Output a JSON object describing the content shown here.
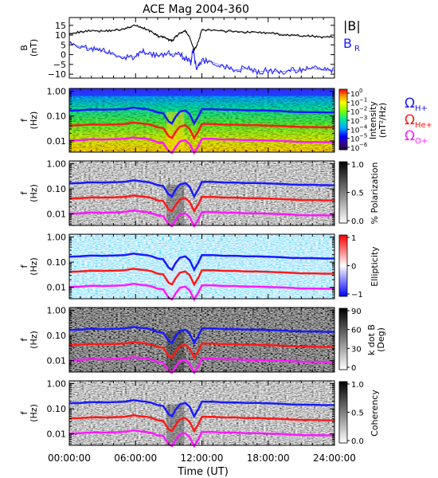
{
  "title": "ACE Mag 2004-360",
  "x_axis": {
    "label": "Time (UT)",
    "range": [
      0,
      24
    ],
    "ticks": [
      {
        "value": 0,
        "label": "00:00:00"
      },
      {
        "value": 6,
        "label": "06:00:00"
      },
      {
        "value": 12,
        "label": "12:00:00"
      },
      {
        "value": 18,
        "label": "18:00:00"
      },
      {
        "value": 24,
        "label": "24:00:00"
      }
    ]
  },
  "colors": {
    "btotal": "#000000",
    "br": "#1a1aff",
    "h_plus": "#1a1aff",
    "he_plus": "#ff1a1a",
    "o_plus": "#ff1aff"
  },
  "ion_labels": {
    "h": "H+",
    "he": "He+",
    "o": "O+",
    "omega": "Ω"
  },
  "chart_data": [
    {
      "type": "line",
      "panel": "field",
      "ylabel": "B",
      "yunits": "(nT)",
      "ylim": [
        -12,
        19
      ],
      "yticks": [
        -10,
        -5,
        0,
        5,
        10,
        15
      ],
      "legend": [
        "|B|",
        "BR"
      ],
      "legend_main": {
        "btotal": "|B|",
        "br": "B"
      },
      "legend_sub": {
        "br": "R"
      },
      "series": [
        {
          "name": "|B|",
          "color": "#000000",
          "x": [
            0,
            1,
            2,
            3,
            4,
            5,
            5.8,
            6.5,
            7,
            7.5,
            8,
            8.5,
            9,
            9.3,
            9.6,
            10,
            10.5,
            10.9,
            11.3,
            11.7,
            12,
            13,
            14,
            15,
            16,
            17,
            18,
            19,
            20,
            21,
            22,
            23,
            24
          ],
          "values": [
            11,
            11.5,
            12.5,
            12,
            12.5,
            13,
            15,
            14,
            13,
            11.5,
            9.5,
            9,
            7.5,
            7,
            9,
            11,
            12,
            9,
            2,
            7,
            12.5,
            12.5,
            12,
            12,
            11.5,
            11.5,
            11,
            10.5,
            10,
            9.5,
            9.5,
            9,
            9
          ]
        },
        {
          "name": "BR",
          "color": "#1a1aff",
          "x": [
            0,
            1,
            2,
            3,
            4,
            5,
            6,
            6.5,
            7,
            8,
            9,
            10,
            10.5,
            11,
            11.2,
            11.5,
            12,
            13,
            14,
            15,
            16,
            17,
            18,
            19,
            20,
            21,
            22,
            23,
            24
          ],
          "values": [
            6,
            4,
            3,
            2,
            0,
            -1.5,
            -1,
            2,
            0.5,
            -0.5,
            0.5,
            0,
            -2,
            -4,
            3,
            -7,
            -3,
            -4,
            -6,
            -8,
            -7,
            -9,
            -8,
            -9,
            -8,
            -8,
            -7,
            -8,
            -8
          ]
        }
      ]
    },
    {
      "type": "heatmap",
      "panel": "intensity",
      "ylabel": "f",
      "yunits": "(Hz)",
      "ylim": [
        0.0035,
        1.3
      ],
      "yticks": [
        0.01,
        0.1,
        1.0
      ],
      "ytick_labels": [
        "0.01",
        "0.10",
        "1.00"
      ],
      "colorbar_label": "Intensity",
      "colorbar_units": "(nT²/Hz)",
      "colorbar_exponents": [
        "0",
        "−1",
        "−2",
        "−3",
        "−4",
        "−5",
        "−6"
      ],
      "colorbar_base": "10"
    },
    {
      "type": "heatmap",
      "panel": "polarization",
      "ylabel": "f",
      "yunits": "(Hz)",
      "ylim": [
        0.0035,
        1.3
      ],
      "yticks": [
        0.01,
        0.1,
        1.0
      ],
      "ytick_labels": [
        "0.01",
        "0.10",
        "1.00"
      ],
      "colorbar_label": "% Polarization",
      "colorbar_ticks": [
        "1.0",
        "0.5",
        "0.0"
      ]
    },
    {
      "type": "heatmap",
      "panel": "ellipticity",
      "ylabel": "f",
      "yunits": "(Hz)",
      "ylim": [
        0.0035,
        1.3
      ],
      "yticks": [
        0.01,
        0.1,
        1.0
      ],
      "ytick_labels": [
        "0.01",
        "0.10",
        "1.00"
      ],
      "colorbar_label": "Ellipticity",
      "colorbar_ticks": [
        "1",
        "0",
        "−1"
      ]
    },
    {
      "type": "heatmap",
      "panel": "kdotb",
      "ylabel": "f",
      "yunits": "(Hz)",
      "ylim": [
        0.0035,
        1.3
      ],
      "yticks": [
        0.01,
        0.1,
        1.0
      ],
      "ytick_labels": [
        "0.01",
        "0.10",
        "1.00"
      ],
      "colorbar_label": "k dot B",
      "colorbar_units": "(Deg)",
      "colorbar_ticks": [
        "90",
        "60",
        "30",
        "0"
      ]
    },
    {
      "type": "heatmap",
      "panel": "coherency",
      "ylabel": "f",
      "yunits": "(Hz)",
      "ylim": [
        0.0035,
        1.3
      ],
      "yticks": [
        0.01,
        0.1,
        1.0
      ],
      "ytick_labels": [
        "0.01",
        "0.10",
        "1.00"
      ],
      "colorbar_label": "Coherency",
      "colorbar_ticks": [
        "1.0",
        "0.5",
        "0.0"
      ]
    }
  ],
  "gyrofrequency_curves": {
    "x": [
      0,
      1,
      2,
      3,
      4,
      5,
      5.8,
      6.5,
      7,
      7.5,
      8,
      8.5,
      9,
      9.3,
      9.6,
      10,
      10.5,
      10.9,
      11.3,
      11.7,
      12,
      13,
      14,
      15,
      16,
      17,
      18,
      19,
      20,
      21,
      22,
      23,
      24
    ],
    "h_plus_hz": [
      0.165,
      0.17,
      0.185,
      0.18,
      0.185,
      0.19,
      0.22,
      0.2,
      0.19,
      0.17,
      0.14,
      0.13,
      0.06,
      0.05,
      0.09,
      0.15,
      0.17,
      0.12,
      0.05,
      0.1,
      0.19,
      0.19,
      0.18,
      0.18,
      0.17,
      0.17,
      0.165,
      0.16,
      0.15,
      0.145,
      0.145,
      0.14,
      0.14
    ],
    "he_plus_hz": [
      0.041,
      0.043,
      0.046,
      0.045,
      0.046,
      0.048,
      0.055,
      0.05,
      0.048,
      0.043,
      0.035,
      0.033,
      0.015,
      0.013,
      0.022,
      0.038,
      0.043,
      0.03,
      0.013,
      0.025,
      0.048,
      0.048,
      0.045,
      0.045,
      0.043,
      0.043,
      0.041,
      0.04,
      0.038,
      0.036,
      0.036,
      0.035,
      0.035
    ],
    "o_plus_hz": [
      0.0103,
      0.0107,
      0.0116,
      0.0113,
      0.0116,
      0.012,
      0.0138,
      0.0125,
      0.012,
      0.0107,
      0.0088,
      0.0083,
      0.0038,
      0.0033,
      0.0055,
      0.0095,
      0.0107,
      0.0075,
      0.0033,
      0.0063,
      0.012,
      0.012,
      0.0113,
      0.0113,
      0.0107,
      0.0107,
      0.0103,
      0.01,
      0.0095,
      0.009,
      0.009,
      0.0088,
      0.0088
    ]
  }
}
